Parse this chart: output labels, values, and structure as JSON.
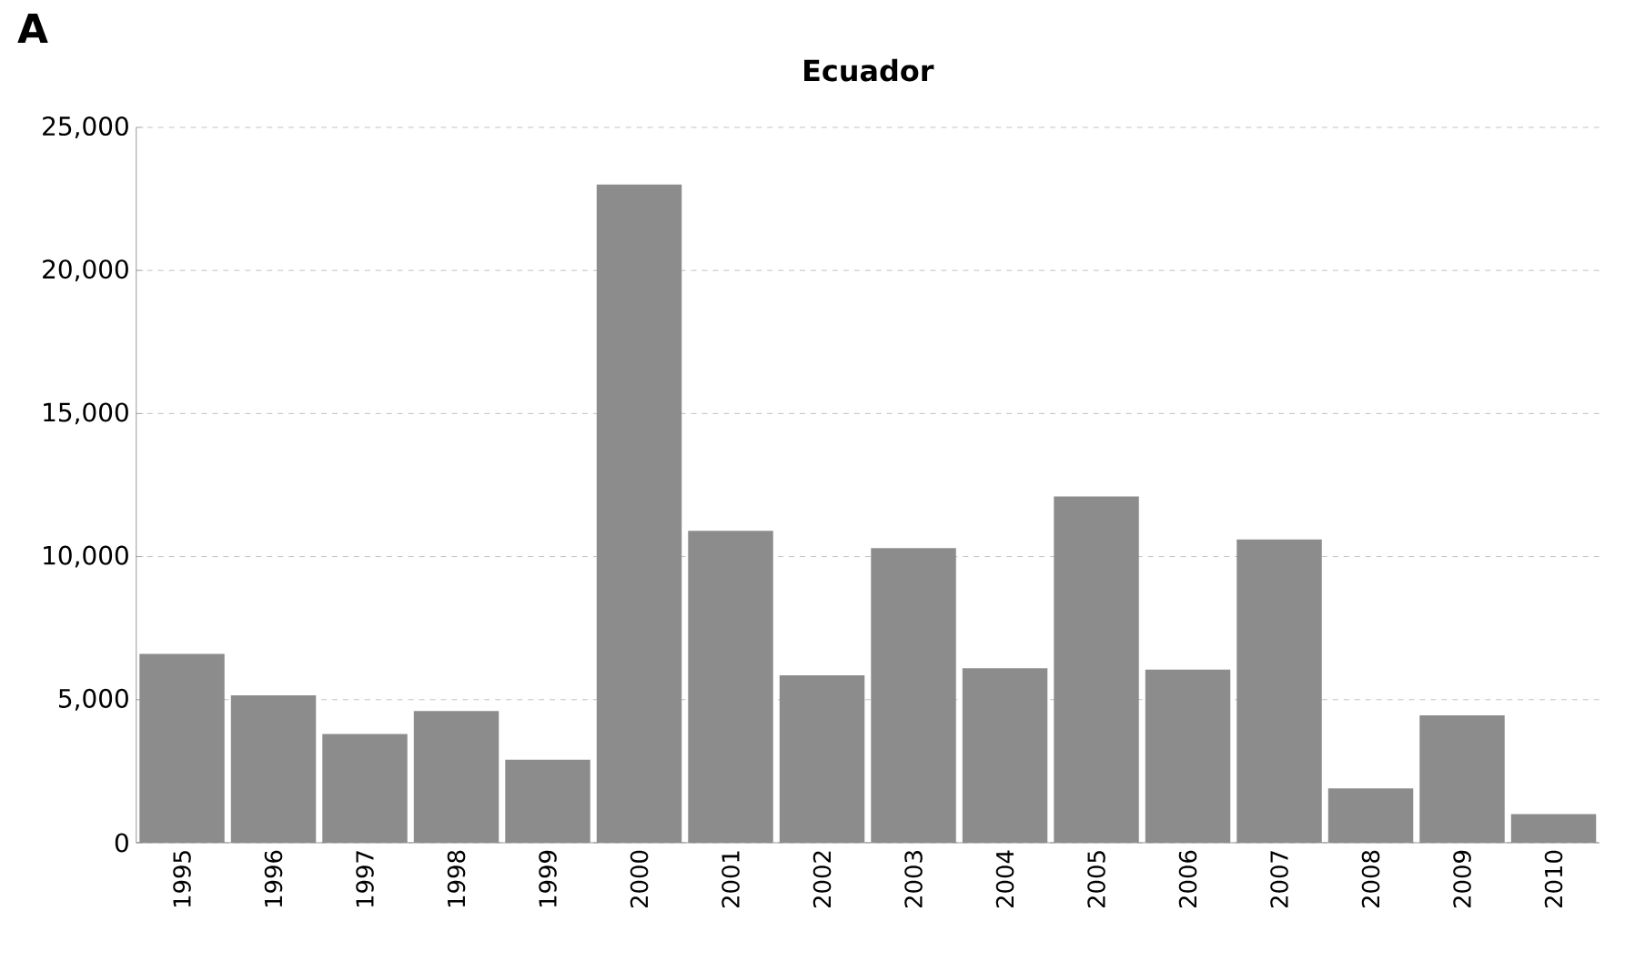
{
  "chart_data": {
    "type": "bar",
    "title": "Ecuador",
    "annotations": [
      "A"
    ],
    "categories": [
      "1995",
      "1996",
      "1997",
      "1998",
      "1999",
      "2000",
      "2001",
      "2002",
      "2003",
      "2004",
      "2005",
      "2006",
      "2007",
      "2008",
      "2009",
      "2010"
    ],
    "values": [
      6600,
      5150,
      3800,
      4600,
      2900,
      23000,
      10900,
      5850,
      10300,
      6100,
      12100,
      6050,
      10600,
      1900,
      4450,
      1000
    ],
    "color": "#8c8c8c",
    "ylim": [
      0,
      25000
    ],
    "yticks": [
      {
        "value": 0,
        "label": "0"
      },
      {
        "value": 5000,
        "label": "5,000"
      },
      {
        "value": 10000,
        "label": "10,000"
      },
      {
        "value": 15000,
        "label": "15,000"
      },
      {
        "value": 20000,
        "label": "20,000"
      },
      {
        "value": 25000,
        "label": "25,000"
      }
    ],
    "grid": "y"
  }
}
